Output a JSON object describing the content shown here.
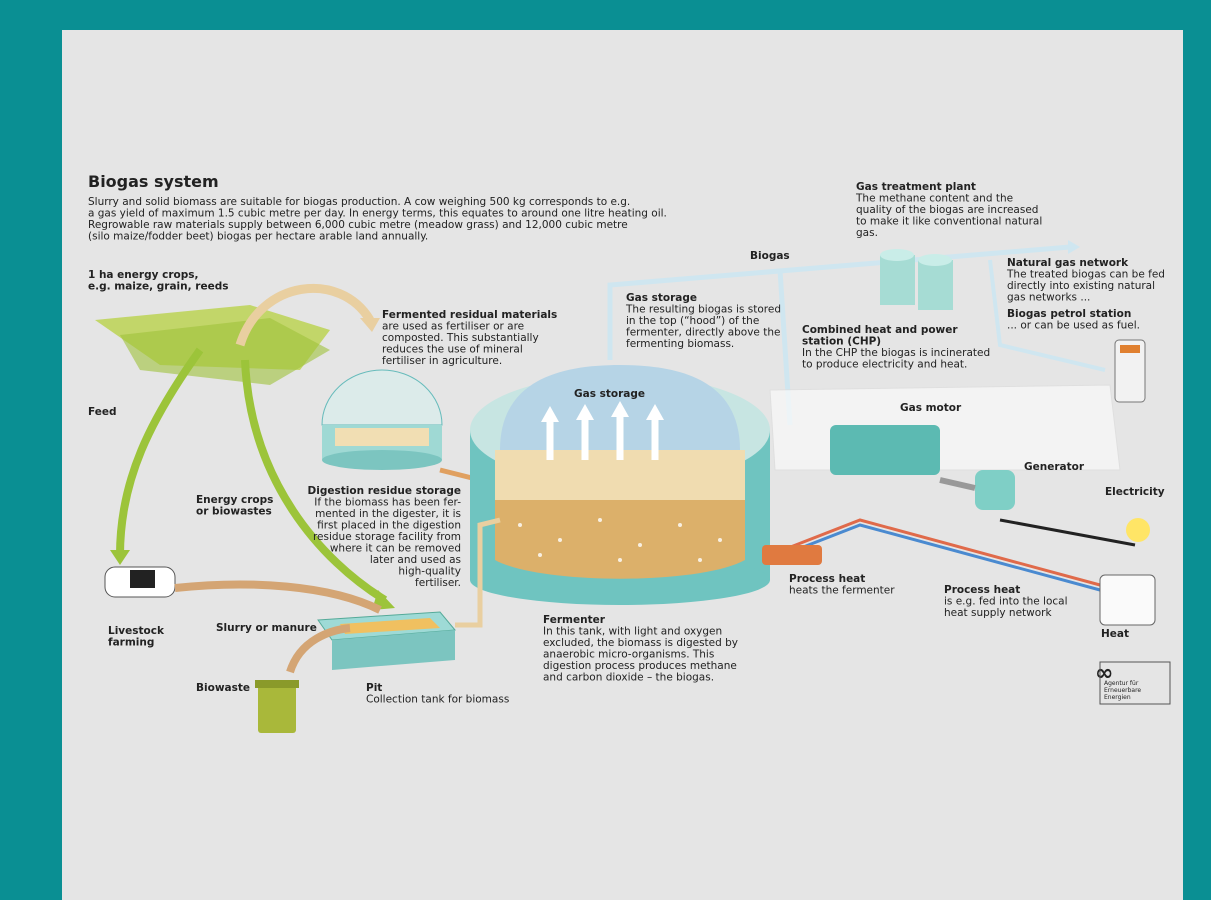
{
  "header": {
    "title": "Biogas system",
    "intro": [
      "Slurry and solid biomass are suitable for biogas production. A cow weighing 500 kg corresponds to e.g.",
      "a gas yield of maximum 1.5 cubic metre per day. In energy terms, this equates to around one litre heating oil.",
      "Regrowable raw materials supply between 6,000 cubic metre (meadow grass) and 12,000 cubic metre",
      "(silo maize/fodder beet) biogas per hectare arable land annually."
    ]
  },
  "labels": [
    {
      "heading": [
        "1 ha energy crops,",
        "e.g. maize, grain, reeds"
      ]
    },
    {
      "heading": [
        "Fermented residual materials"
      ],
      "body": [
        "are used as fertiliser or are",
        "composted. This substantially",
        "reduces the use of mineral",
        "fertiliser in agriculture."
      ]
    },
    {
      "heading": [
        "Feed"
      ]
    },
    {
      "heading": [
        "Energy crops",
        "or biowastes"
      ]
    },
    {
      "heading": [
        "Digestion residue storage"
      ],
      "body": [
        "If the biomass has been fer-",
        "mented in the digester, it is",
        "first placed in the digestion",
        "residue storage facility from",
        "where it can be removed",
        "later and used as",
        "high-quality",
        "fertiliser."
      ]
    },
    {
      "heading": [
        "Livestock",
        "farming"
      ]
    },
    {
      "heading": [
        "Slurry or manure"
      ]
    },
    {
      "heading": [
        "Biowaste"
      ]
    },
    {
      "heading": [
        "Pit"
      ],
      "body": [
        "Collection tank for biomass"
      ]
    },
    {
      "heading": [
        "Fermenter"
      ],
      "body": [
        "In this tank, with light and oxygen",
        "excluded, the biomass is digested by",
        "anaerobic micro-organisms. This",
        "digestion process produces methane",
        "and carbon dioxide – the biogas."
      ]
    },
    {
      "heading": [
        "Gas storage"
      ]
    },
    {
      "heading": [
        "Gas storage"
      ],
      "body": [
        "The resulting biogas is stored",
        "in the top (“hood”) of the",
        "fermenter, directly above the",
        "fermenting biomass."
      ]
    },
    {
      "heading": [
        "Biogas"
      ]
    },
    {
      "heading": [
        "Gas treatment plant"
      ],
      "body": [
        "The methane content and the",
        "quality of the biogas are increased",
        "to make it like conventional natural",
        "gas."
      ]
    },
    {
      "heading": [
        "Natural gas network"
      ],
      "body": [
        "The treated biogas can be fed",
        "directly into existing natural",
        "gas networks ..."
      ]
    },
    {
      "heading": [
        "Biogas petrol station"
      ],
      "body": [
        "... or can be used as fuel."
      ]
    },
    {
      "heading": [
        "Combined heat and power",
        "station (CHP)"
      ],
      "body": [
        "In the CHP the biogas is incinerated",
        "to produce electricity and heat."
      ]
    },
    {
      "heading": [
        "Gas motor"
      ]
    },
    {
      "heading": [
        "Generator"
      ]
    },
    {
      "heading": [
        "Electricity"
      ]
    },
    {
      "heading": [
        "Process heat"
      ],
      "body": [
        "heats the fermenter"
      ]
    },
    {
      "heading": [
        "Process heat"
      ],
      "body": [
        "is e.g. fed into the local",
        "heat supply network"
      ]
    },
    {
      "heading": [
        "Heat"
      ]
    }
  ],
  "logo": {
    "lines": [
      "Agentur für",
      "Erneuerbare",
      "Energien"
    ]
  }
}
